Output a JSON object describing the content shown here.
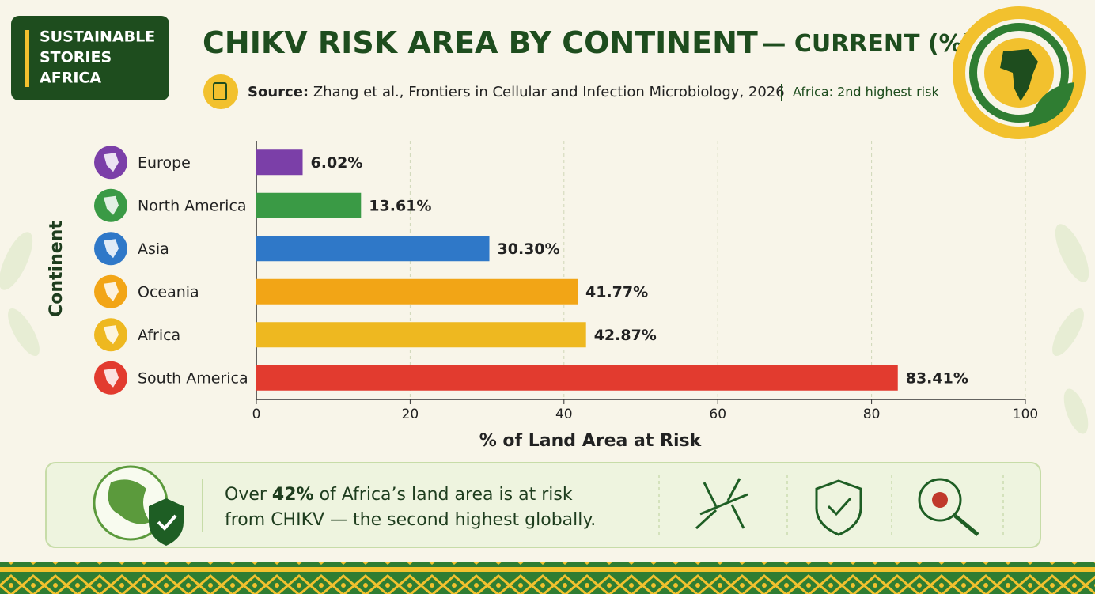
{
  "brand": [
    "SUSTAINABLE",
    "STORIES",
    "AFRICA"
  ],
  "chart_data": {
    "type": "bar",
    "orientation": "horizontal",
    "title": "CHIKV RISK AREA BY CONTINENT",
    "title_qualifier": "— CURRENT (%)",
    "source_label": "Source:",
    "source": "Zhang et al., Frontiers in Cellular and Infection Microbiology, 2026",
    "note": "Africa: 2nd highest risk",
    "ylabel": "Continent",
    "xlabel": "% of Land Area at Risk",
    "categories": [
      "Europe",
      "North America",
      "Asia",
      "Oceania",
      "Africa",
      "South America"
    ],
    "values": [
      6.02,
      13.61,
      30.3,
      41.77,
      42.87,
      83.41
    ],
    "value_labels": [
      "6.02%",
      "13.61%",
      "30.30%",
      "41.77%",
      "42.87%",
      "83.41%"
    ],
    "colors": [
      "#7b3fa8",
      "#3a9a45",
      "#2f78c8",
      "#f2a516",
      "#eeb820",
      "#e23b2f"
    ],
    "xlim": [
      0,
      100
    ],
    "xticks": [
      0,
      20,
      40,
      60,
      80,
      100
    ],
    "grid": true
  },
  "callout": {
    "lead": "Over",
    "highlight": "42%",
    "line1": "of Africa’s land area is at risk",
    "line2": "from CHIKV — the second highest globally."
  }
}
